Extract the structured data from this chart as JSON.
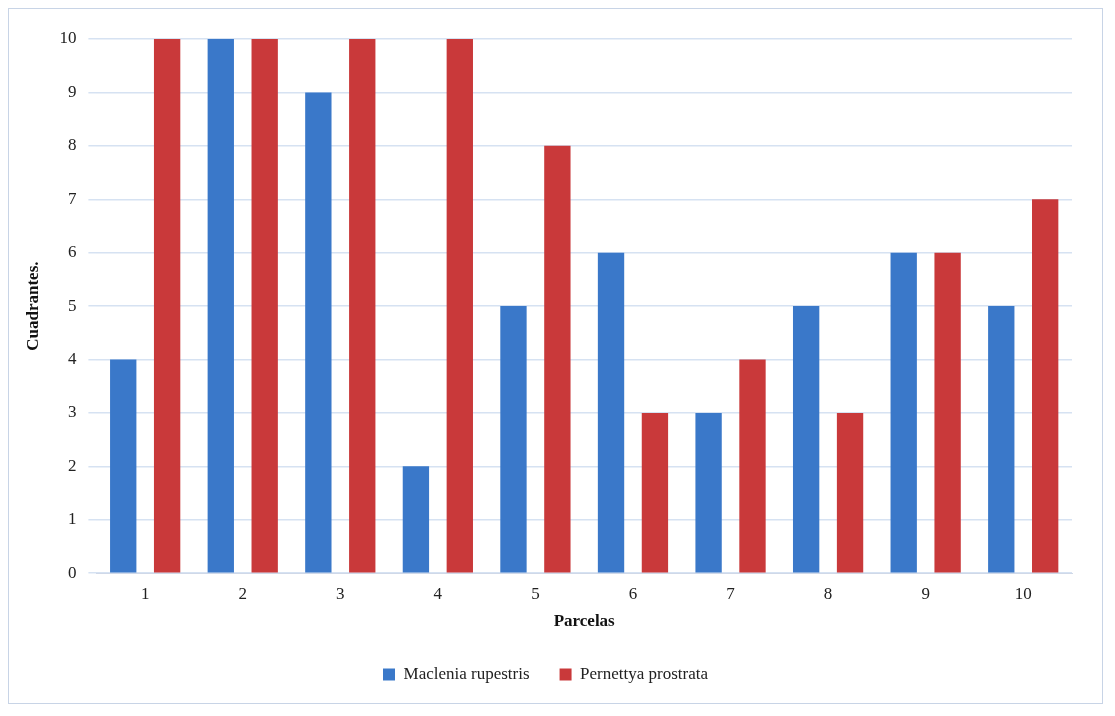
{
  "chart_data": {
    "type": "bar",
    "xlabel": "Parcelas",
    "ylabel": "Cuadrantes.",
    "categories": [
      "1",
      "2",
      "3",
      "4",
      "5",
      "6",
      "7",
      "8",
      "9",
      "10"
    ],
    "series": [
      {
        "name": "Maclenia rupestris",
        "color": "#3a78c9",
        "values": [
          4,
          10,
          9,
          2,
          5,
          6,
          3,
          5,
          6,
          5
        ]
      },
      {
        "name": "Pernettya prostrata",
        "color": "#c9393a",
        "values": [
          10,
          10,
          10,
          10,
          8,
          3,
          4,
          3,
          6,
          7
        ]
      }
    ],
    "ylim": [
      0,
      10
    ],
    "yticks": [
      0,
      1,
      2,
      3,
      4,
      5,
      6,
      7,
      8,
      9,
      10
    ],
    "grid": "y",
    "legend": "bottom"
  }
}
